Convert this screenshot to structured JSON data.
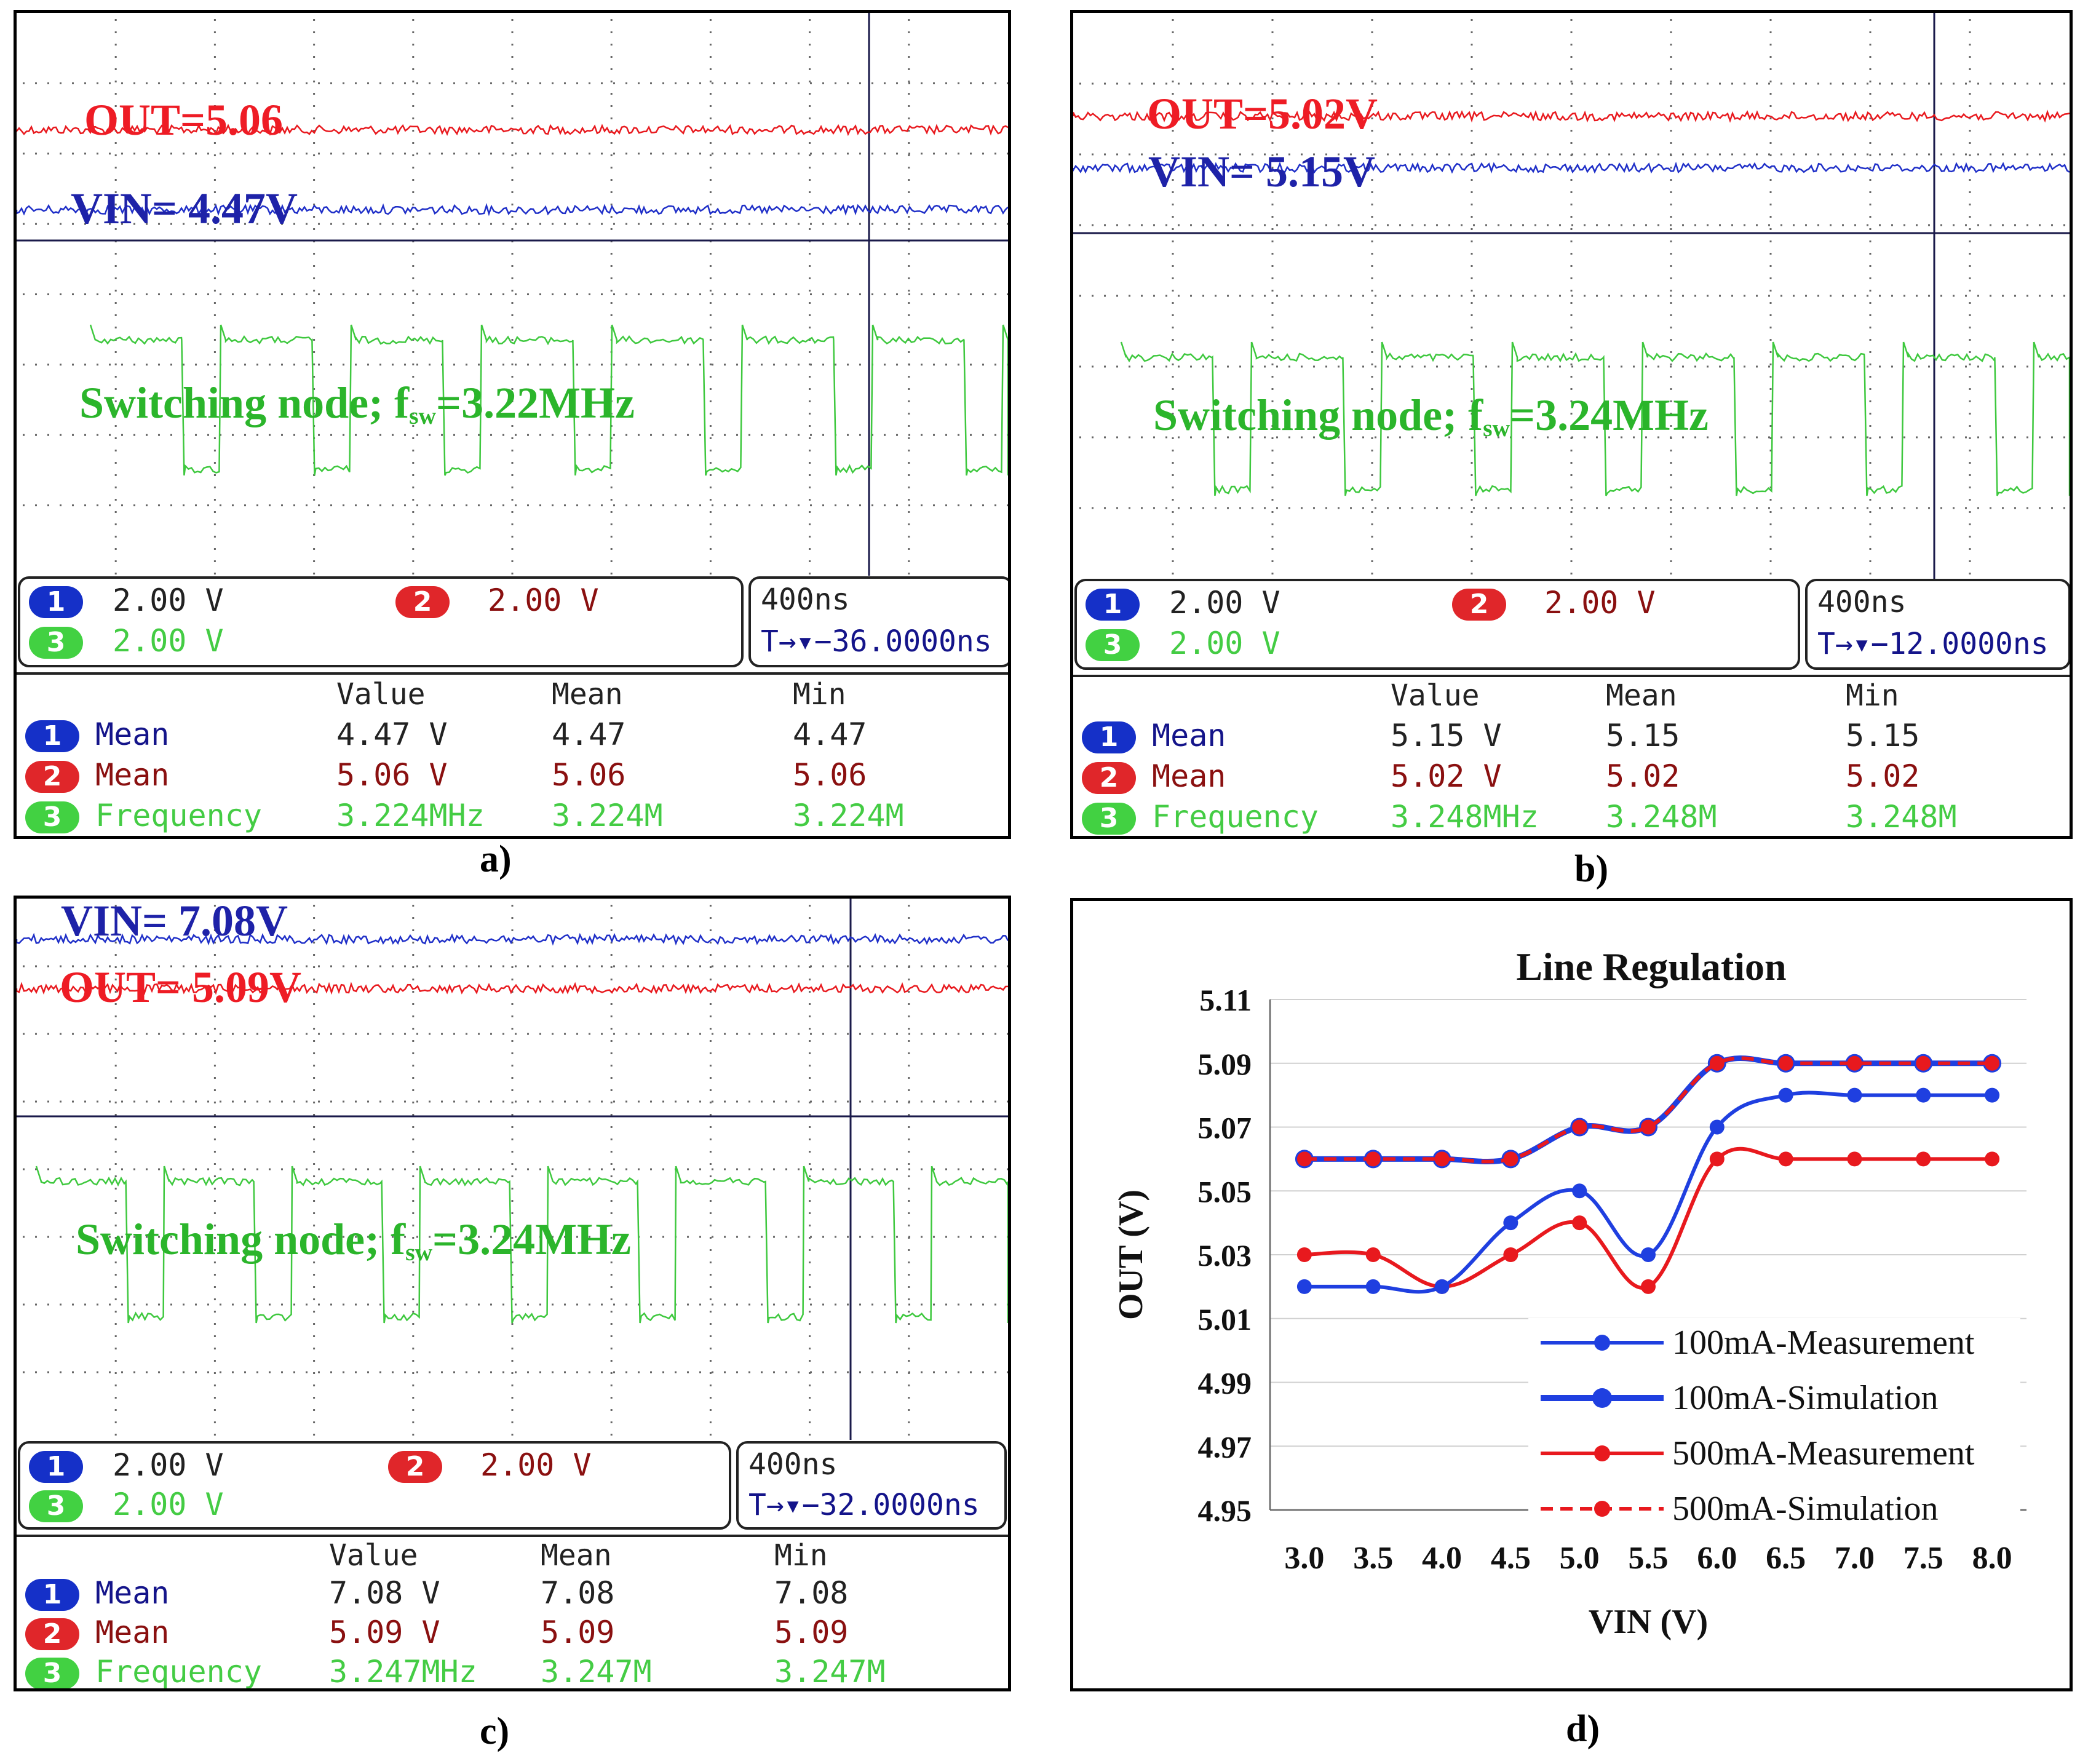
{
  "panels": [
    {
      "caption": "a)",
      "out_label": "OUT=5.06",
      "vin_label": "VIN= 4.47V",
      "sw_label_pre": "Switching node; f",
      "sw_label_sub": "sw",
      "sw_label_post": "=3.22MHz",
      "ch1_scale": "2.00 V",
      "ch2_scale": "2.00 V",
      "ch3_scale": "2.00 V",
      "timebase": "400ns",
      "trigger": "T→▾−36.0000ns",
      "ch1_num": "1",
      "ch2_num": "2",
      "ch3_num": "3",
      "meas_headers": [
        "Value",
        "Mean",
        "Min"
      ],
      "meas": [
        {
          "num": "1",
          "name": "Mean",
          "value": "4.47 V",
          "mean": "4.47",
          "min": "4.47"
        },
        {
          "num": "2",
          "name": "Mean",
          "value": "5.06 V",
          "mean": "5.06",
          "min": "5.06"
        },
        {
          "num": "3",
          "name": "Frequency",
          "value": "3.224MHz",
          "mean": "3.224M",
          "min": "3.224M"
        }
      ]
    },
    {
      "caption": "b)",
      "out_label": "OUT=5.02V",
      "vin_label": "VIN= 5.15V",
      "sw_label_pre": "Switching node; f",
      "sw_label_sub": "sw",
      "sw_label_post": "=3.24MHz",
      "ch1_scale": "2.00 V",
      "ch2_scale": "2.00 V",
      "ch3_scale": "2.00 V",
      "timebase": "400ns",
      "trigger": "T→▾−12.0000ns",
      "ch1_num": "1",
      "ch2_num": "2",
      "ch3_num": "3",
      "meas_headers": [
        "Value",
        "Mean",
        "Min"
      ],
      "meas": [
        {
          "num": "1",
          "name": "Mean",
          "value": "5.15 V",
          "mean": "5.15",
          "min": "5.15"
        },
        {
          "num": "2",
          "name": "Mean",
          "value": "5.02 V",
          "mean": "5.02",
          "min": "5.02"
        },
        {
          "num": "3",
          "name": "Frequency",
          "value": "3.248MHz",
          "mean": "3.248M",
          "min": "3.248M"
        }
      ]
    },
    {
      "caption": "c)",
      "out_label": "OUT= 5.09V",
      "vin_label": "VIN= 7.08V",
      "sw_label_pre": "Switching node; f",
      "sw_label_sub": "sw",
      "sw_label_post": "=3.24MHz",
      "ch1_scale": "2.00 V",
      "ch2_scale": "2.00 V",
      "ch3_scale": "2.00 V",
      "timebase": "400ns",
      "trigger": "T→▾−32.0000ns",
      "ch1_num": "1",
      "ch2_num": "2",
      "ch3_num": "3",
      "meas_headers": [
        "Value",
        "Mean",
        "Min"
      ],
      "meas": [
        {
          "num": "1",
          "name": "Mean",
          "value": "7.08 V",
          "mean": "7.08",
          "min": "7.08"
        },
        {
          "num": "2",
          "name": "Mean",
          "value": "5.09 V",
          "mean": "5.09",
          "min": "5.09"
        },
        {
          "num": "3",
          "name": "Frequency",
          "value": "3.247MHz",
          "mean": "3.247M",
          "min": "3.247M"
        }
      ]
    }
  ],
  "chart_caption": "d)",
  "chart_data": {
    "type": "line",
    "title": "Line Regulation",
    "xlabel": "VIN (V)",
    "ylabel": "OUT (V)",
    "categories": [
      "3.0",
      "3.5",
      "4.0",
      "4.5",
      "5.0",
      "5.5",
      "6.0",
      "6.5",
      "7.0",
      "7.5",
      "8.0"
    ],
    "x": [
      3.0,
      3.5,
      4.0,
      4.5,
      5.0,
      5.5,
      6.0,
      6.5,
      7.0,
      7.5,
      8.0
    ],
    "ylim": [
      4.95,
      5.11
    ],
    "yticks": [
      "5.11",
      "5.09",
      "5.07",
      "5.05",
      "5.03",
      "5.01",
      "4.99",
      "4.97",
      "4.95"
    ],
    "series": [
      {
        "name": "100mA-Measurement",
        "color": "#1f3fe0",
        "style": "solid",
        "values": [
          5.02,
          5.02,
          5.02,
          5.04,
          5.05,
          5.03,
          5.07,
          5.08,
          5.08,
          5.08,
          5.08
        ]
      },
      {
        "name": "100mA-Simulation",
        "color": "#1f3fe0",
        "style": "thick",
        "values": [
          5.06,
          5.06,
          5.06,
          5.06,
          5.07,
          5.07,
          5.09,
          5.09,
          5.09,
          5.09,
          5.09
        ]
      },
      {
        "name": "500mA-Measurement",
        "color": "#e8191e",
        "style": "solid",
        "values": [
          5.03,
          5.03,
          5.02,
          5.03,
          5.04,
          5.02,
          5.06,
          5.06,
          5.06,
          5.06,
          5.06
        ]
      },
      {
        "name": "500mA-Simulation",
        "color": "#e8191e",
        "style": "dashed",
        "values": [
          5.06,
          5.06,
          5.06,
          5.06,
          5.07,
          5.07,
          5.09,
          5.09,
          5.09,
          5.09,
          5.09
        ]
      }
    ],
    "legend_position": "bottom-right",
    "grid": true
  }
}
